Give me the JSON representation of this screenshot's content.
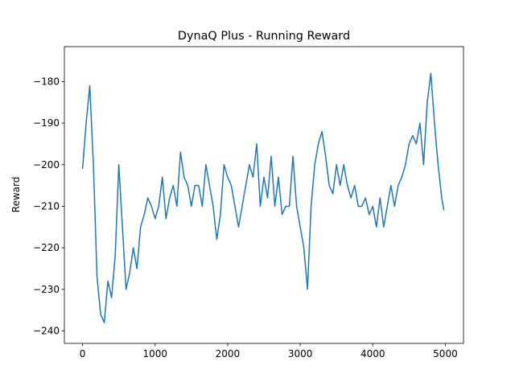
{
  "chart_data": {
    "type": "line",
    "title": "DynaQ Plus - Running Reward",
    "y_label": "Reward",
    "x": [
      0,
      50,
      100,
      150,
      200,
      250,
      300,
      350,
      400,
      450,
      500,
      550,
      600,
      650,
      700,
      750,
      800,
      850,
      900,
      950,
      1000,
      1050,
      1100,
      1150,
      1200,
      1250,
      1300,
      1350,
      1400,
      1450,
      1500,
      1550,
      1600,
      1650,
      1700,
      1750,
      1800,
      1850,
      1900,
      1950,
      2000,
      2050,
      2100,
      2150,
      2200,
      2250,
      2300,
      2350,
      2400,
      2450,
      2500,
      2550,
      2600,
      2650,
      2700,
      2750,
      2800,
      2850,
      2900,
      2950,
      3000,
      3050,
      3100,
      3150,
      3200,
      3250,
      3300,
      3350,
      3400,
      3450,
      3500,
      3550,
      3600,
      3650,
      3700,
      3750,
      3800,
      3850,
      3900,
      3950,
      4000,
      4050,
      4100,
      4150,
      4200,
      4250,
      4300,
      4350,
      4400,
      4450,
      4500,
      4550,
      4600,
      4650,
      4700,
      4750,
      4800,
      4850,
      4900,
      4950,
      4980
    ],
    "series": [
      {
        "name": "Running Reward",
        "color": "#1f77b4",
        "values": [
          -201,
          -190,
          -181,
          -200,
          -227,
          -236,
          -238,
          -228,
          -232,
          -222,
          -200,
          -215,
          -230,
          -226,
          -220,
          -225,
          -215,
          -212,
          -208,
          -210,
          -213,
          -210,
          -203,
          -213,
          -208,
          -205,
          -210,
          -197,
          -203,
          -205,
          -210,
          -205,
          -205,
          -210,
          -200,
          -205,
          -210,
          -218,
          -212,
          -200,
          -203,
          -205,
          -210,
          -215,
          -210,
          -205,
          -200,
          -203,
          -195,
          -210,
          -203,
          -208,
          -198,
          -210,
          -203,
          -212,
          -210,
          -210,
          -198,
          -210,
          -215,
          -220,
          -230,
          -210,
          -200,
          -195,
          -192,
          -198,
          -205,
          -207,
          -200,
          -205,
          -200,
          -205,
          -208,
          -205,
          -210,
          -210,
          -208,
          -212,
          -210,
          -215,
          -208,
          -215,
          -210,
          -205,
          -210,
          -205,
          -203,
          -200,
          -195,
          -193,
          -195,
          -190,
          -200,
          -185,
          -178,
          -190,
          -200,
          -208,
          -211
        ]
      }
    ],
    "xlim": [
      -250,
      5250
    ],
    "ylim": [
      -243,
      -171.6
    ],
    "xticks": [
      0,
      1000,
      2000,
      3000,
      4000,
      5000
    ],
    "yticks": [
      {
        "value": -240,
        "label": "−240"
      },
      {
        "value": -230,
        "label": "−230"
      },
      {
        "value": -220,
        "label": "−220"
      },
      {
        "value": -210,
        "label": "−210"
      },
      {
        "value": -200,
        "label": "−200"
      },
      {
        "value": -190,
        "label": "−190"
      },
      {
        "value": -180,
        "label": "−180"
      }
    ],
    "grid": false
  }
}
